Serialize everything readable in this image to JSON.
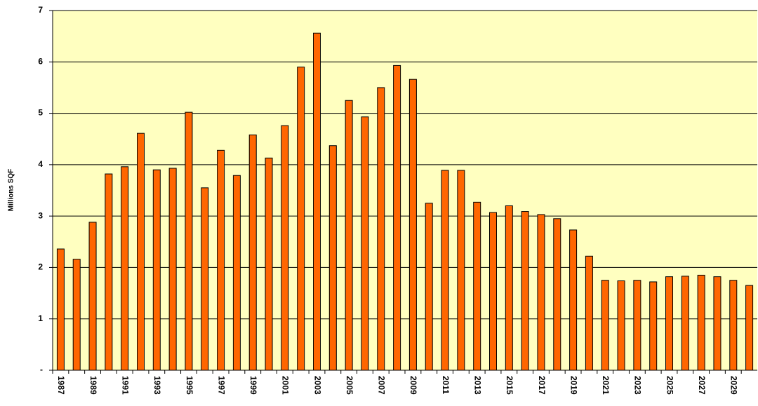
{
  "chart_data": {
    "type": "bar",
    "y_label": "Millions SQF",
    "categories": [
      "1987",
      null,
      "1989",
      null,
      "1991",
      null,
      "1993",
      null,
      "1995",
      null,
      "1997",
      null,
      "1999",
      null,
      "2001",
      null,
      "2003",
      null,
      "2005",
      null,
      "2007",
      null,
      "2009",
      null,
      "2011",
      null,
      "2013",
      null,
      "2015",
      null,
      "2017",
      null,
      "2019",
      null,
      "2021",
      null,
      "2023",
      null,
      "2025",
      null,
      "2027",
      null,
      "2029",
      null
    ],
    "values": [
      2.36,
      2.16,
      2.88,
      3.82,
      3.96,
      4.61,
      3.9,
      3.93,
      5.02,
      3.55,
      4.28,
      3.79,
      4.58,
      4.13,
      4.76,
      5.9,
      6.56,
      4.37,
      5.25,
      4.93,
      5.5,
      5.93,
      5.66,
      3.25,
      3.89,
      3.89,
      3.27,
      3.07,
      3.2,
      3.09,
      3.03,
      2.95,
      2.73,
      2.22,
      1.75,
      1.74,
      1.75,
      1.72,
      1.82,
      1.83,
      1.85,
      1.82,
      1.75,
      1.65
    ],
    "color": "#ff6600",
    "background": "#ffffc0",
    "ylim": [
      0,
      7
    ],
    "yticks": [
      {
        "value": 0,
        "label": "-"
      },
      1,
      2,
      3,
      4,
      5,
      6,
      7
    ],
    "grid": true
  }
}
